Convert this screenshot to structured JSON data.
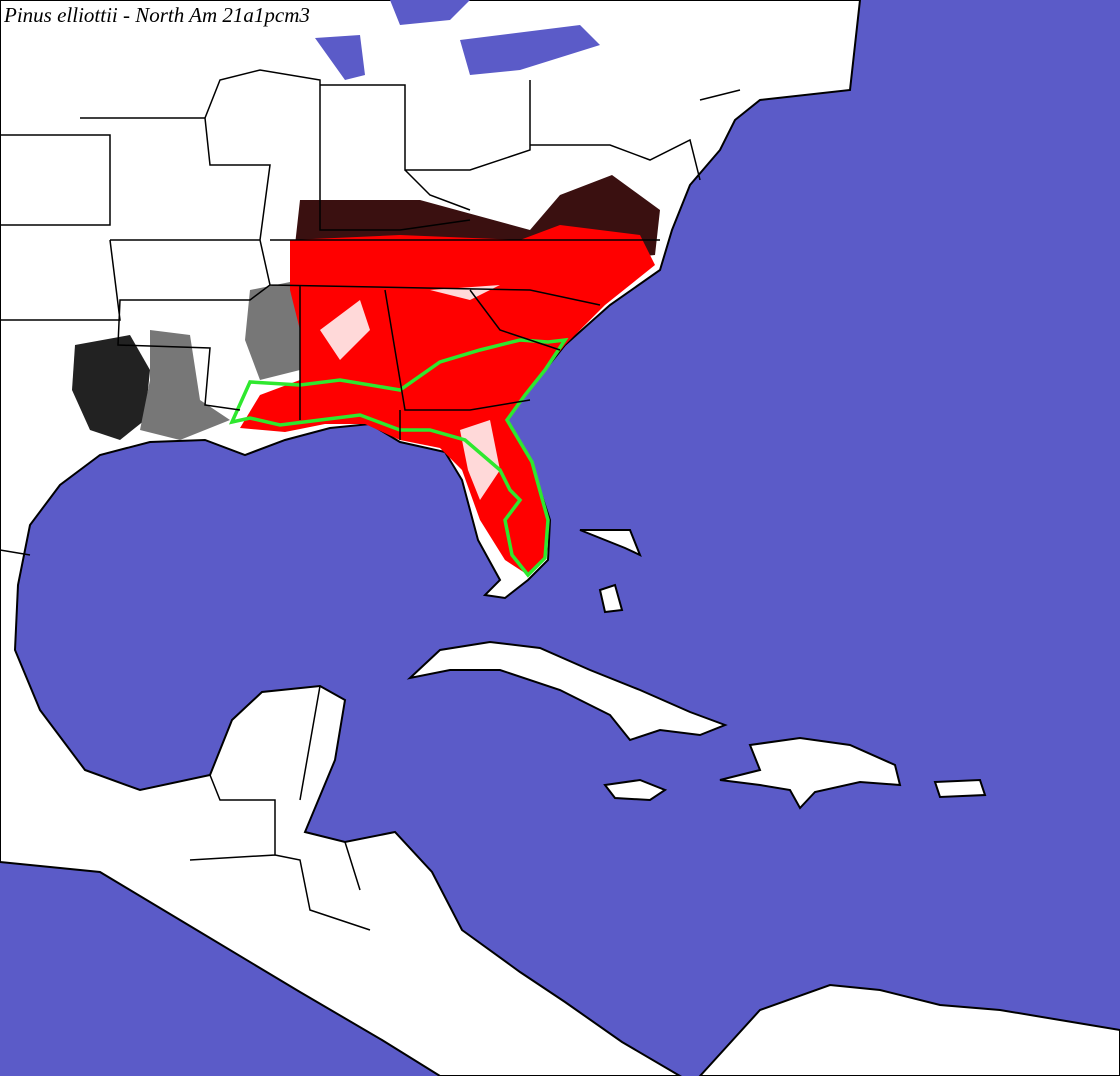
{
  "title": "Pinus elliottii - North Am 21a1pcm3"
}
